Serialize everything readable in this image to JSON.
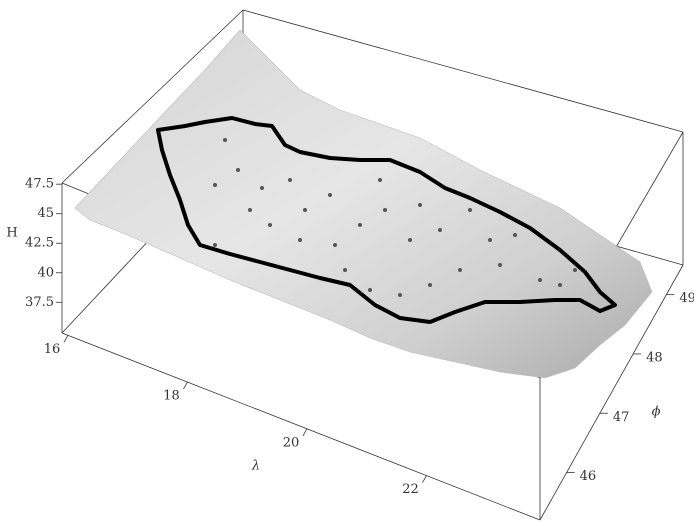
{
  "chart_data": {
    "type": "surface3d",
    "xlabel": "λ",
    "ylabel": "ϕ",
    "zlabel": "H",
    "xlim": [
      15.9,
      23.9
    ],
    "ylim": [
      45.2,
      49.5
    ],
    "zlim": [
      34.9,
      47.6
    ],
    "xticks": [
      16,
      18,
      20,
      22
    ],
    "yticks": [
      46,
      47,
      48,
      49
    ],
    "zticks": [
      37.5,
      40,
      42.5,
      45,
      47.5
    ]
  }
}
